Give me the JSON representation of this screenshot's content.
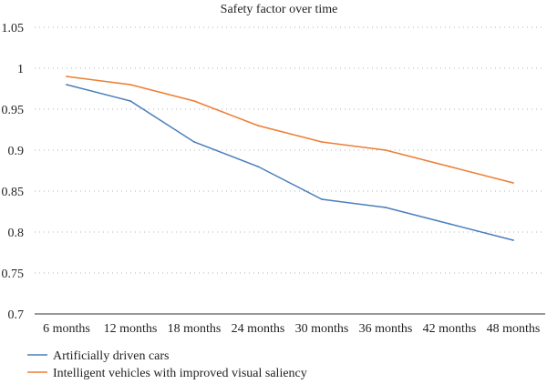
{
  "chart_data": {
    "type": "line",
    "title": "Safety factor over time",
    "xlabel": "",
    "ylabel": "",
    "categories": [
      "6 months",
      "12 months",
      "18 months",
      "24 months",
      "30 months",
      "36 months",
      "42 months",
      "48 months"
    ],
    "ylim": [
      0.7,
      1.05
    ],
    "yticks": [
      "0.7",
      "0.75",
      "0.8",
      "0.85",
      "0.9",
      "0.95",
      "1",
      "1.05"
    ],
    "grid": true,
    "legend_position": "bottom",
    "series": [
      {
        "name": "Artificially driven cars",
        "color": "#4a7ebb",
        "values": [
          0.98,
          0.96,
          0.91,
          0.88,
          0.84,
          0.83,
          0.81,
          0.79
        ]
      },
      {
        "name": "Intelligent vehicles with improved visual saliency",
        "color": "#ed7d31",
        "values": [
          0.99,
          0.98,
          0.96,
          0.93,
          0.91,
          0.9,
          0.88,
          0.86
        ]
      }
    ]
  }
}
